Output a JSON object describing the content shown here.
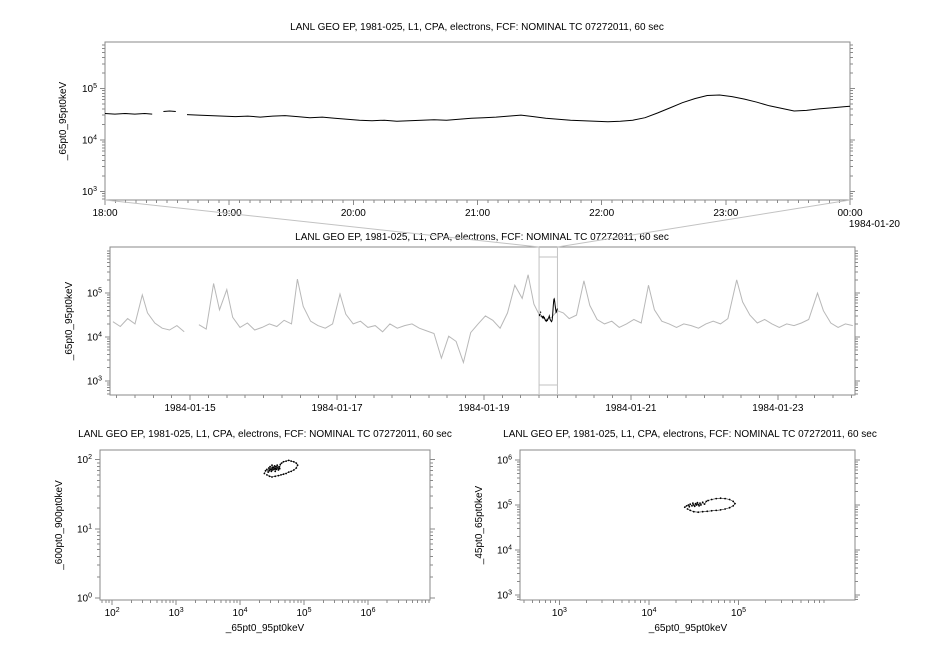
{
  "colors": {
    "series": "#000000",
    "context": "#b8b8b8",
    "axis": "#8a8a8a",
    "selection": "#c2c2c2",
    "background": "#ffffff"
  },
  "chart_data": [
    {
      "id": "zoom-timeseries",
      "type": "line",
      "color_key": "series",
      "title": "LANL GEO EP, 1981-025, L1, CPA, electrons, FCF: NOMINAL TC 07272011, 60 sec",
      "ylabel": "_65pt0_95pt0keV",
      "xlabel": "",
      "x_axis": {
        "range": [
          18,
          24
        ],
        "ticks": [
          18,
          19,
          20,
          21,
          22,
          23,
          24
        ],
        "tick_labels": [
          "18:00",
          "19:00",
          "20:00",
          "21:00",
          "22:00",
          "23:00",
          "00:00"
        ],
        "minor_step": 0.0833333,
        "date_label": "1984-01-20"
      },
      "y_axis": {
        "log": true,
        "exp_range": [
          2.83,
          5.9
        ],
        "major_exps": [
          3,
          4,
          5
        ]
      },
      "points": [
        [
          18.0,
          4.51
        ],
        [
          18.08,
          4.5
        ],
        [
          18.16,
          4.51
        ],
        [
          18.24,
          4.5
        ],
        [
          18.32,
          4.51
        ],
        [
          18.38,
          4.5
        ],
        null,
        [
          18.47,
          4.55
        ],
        [
          18.52,
          4.56
        ],
        [
          18.57,
          4.55
        ],
        null,
        [
          18.66,
          4.49
        ],
        [
          18.75,
          4.48
        ],
        [
          18.85,
          4.47
        ],
        [
          18.95,
          4.46
        ],
        [
          19.05,
          4.45
        ],
        [
          19.15,
          4.46
        ],
        [
          19.25,
          4.44
        ],
        [
          19.35,
          4.46
        ],
        [
          19.45,
          4.47
        ],
        [
          19.55,
          4.45
        ],
        [
          19.65,
          4.43
        ],
        [
          19.75,
          4.44
        ],
        [
          19.85,
          4.42
        ],
        [
          19.95,
          4.4
        ],
        [
          20.05,
          4.38
        ],
        [
          20.15,
          4.37
        ],
        [
          20.25,
          4.38
        ],
        [
          20.35,
          4.36
        ],
        [
          20.45,
          4.37
        ],
        [
          20.55,
          4.38
        ],
        [
          20.65,
          4.39
        ],
        [
          20.75,
          4.38
        ],
        [
          20.85,
          4.4
        ],
        [
          20.95,
          4.42
        ],
        [
          21.05,
          4.43
        ],
        [
          21.15,
          4.44
        ],
        [
          21.25,
          4.46
        ],
        [
          21.35,
          4.48
        ],
        [
          21.45,
          4.45
        ],
        [
          21.55,
          4.42
        ],
        [
          21.65,
          4.4
        ],
        [
          21.75,
          4.38
        ],
        [
          21.85,
          4.37
        ],
        [
          21.95,
          4.36
        ],
        [
          22.05,
          4.35
        ],
        [
          22.15,
          4.36
        ],
        [
          22.25,
          4.38
        ],
        [
          22.35,
          4.43
        ],
        [
          22.45,
          4.52
        ],
        [
          22.55,
          4.62
        ],
        [
          22.65,
          4.72
        ],
        [
          22.75,
          4.8
        ],
        [
          22.85,
          4.86
        ],
        [
          22.95,
          4.87
        ],
        [
          23.05,
          4.84
        ],
        [
          23.15,
          4.79
        ],
        [
          23.25,
          4.73
        ],
        [
          23.35,
          4.66
        ],
        [
          23.45,
          4.61
        ],
        [
          23.55,
          4.56
        ],
        [
          23.65,
          4.57
        ],
        [
          23.75,
          4.6
        ],
        [
          23.85,
          4.62
        ],
        [
          23.95,
          4.64
        ],
        [
          24.0,
          4.65
        ]
      ]
    },
    {
      "id": "context-timeseries",
      "type": "line",
      "color_key": "context",
      "title": "LANL GEO EP, 1981-025, L1, CPA, electrons, FCF: NOMINAL TC 07272011, 60 sec",
      "ylabel": "_65pt0_95pt0keV",
      "xlabel": "",
      "x_axis": {
        "range": [
          13.91,
          24.05
        ],
        "ticks": [
          15,
          17,
          19,
          21,
          23
        ],
        "tick_labels": [
          "1984-01-15",
          "1984-01-17",
          "1984-01-19",
          "1984-01-21",
          "1984-01-23"
        ],
        "minor_step": 0.25,
        "date_label": ""
      },
      "y_axis": {
        "log": true,
        "exp_range": [
          2.68,
          6.05
        ],
        "major_exps": [
          3,
          4,
          5
        ]
      },
      "selection": {
        "start_day": 19.75,
        "end_day": 20.0
      },
      "points": [
        [
          13.95,
          4.35
        ],
        [
          14.05,
          4.24
        ],
        [
          14.15,
          4.42
        ],
        [
          14.25,
          4.3
        ],
        [
          14.35,
          4.96
        ],
        [
          14.42,
          4.55
        ],
        [
          14.52,
          4.32
        ],
        [
          14.62,
          4.2
        ],
        [
          14.72,
          4.16
        ],
        [
          14.82,
          4.26
        ],
        [
          14.92,
          4.12
        ],
        null,
        [
          15.12,
          4.28
        ],
        [
          15.22,
          4.18
        ],
        [
          15.32,
          5.22
        ],
        [
          15.4,
          4.62
        ],
        [
          15.5,
          5.08
        ],
        [
          15.58,
          4.45
        ],
        [
          15.68,
          4.22
        ],
        [
          15.78,
          4.32
        ],
        [
          15.88,
          4.16
        ],
        [
          15.98,
          4.22
        ],
        [
          16.08,
          4.3
        ],
        [
          16.18,
          4.24
        ],
        [
          16.28,
          4.38
        ],
        [
          16.38,
          4.3
        ],
        [
          16.46,
          5.32
        ],
        [
          16.54,
          4.7
        ],
        [
          16.64,
          4.36
        ],
        [
          16.74,
          4.26
        ],
        [
          16.84,
          4.2
        ],
        [
          16.94,
          4.3
        ],
        [
          17.04,
          4.98
        ],
        [
          17.12,
          4.52
        ],
        [
          17.22,
          4.3
        ],
        [
          17.32,
          4.36
        ],
        [
          17.42,
          4.22
        ],
        [
          17.52,
          4.26
        ],
        [
          17.62,
          4.12
        ],
        [
          17.72,
          4.3
        ],
        [
          17.82,
          4.2
        ],
        [
          17.92,
          4.26
        ],
        [
          18.02,
          4.3
        ],
        [
          18.12,
          4.2
        ],
        [
          18.22,
          4.14
        ],
        [
          18.32,
          4.08
        ],
        [
          18.42,
          3.52
        ],
        [
          18.52,
          4.02
        ],
        [
          18.62,
          3.9
        ],
        [
          18.72,
          3.42
        ],
        [
          18.82,
          4.1
        ],
        [
          18.92,
          4.3
        ],
        [
          19.02,
          4.48
        ],
        [
          19.12,
          4.38
        ],
        [
          19.22,
          4.2
        ],
        [
          19.32,
          4.55
        ],
        [
          19.42,
          5.18
        ],
        [
          19.52,
          4.88
        ],
        [
          19.6,
          5.42
        ],
        [
          19.68,
          4.75
        ],
        [
          19.76,
          4.48
        ],
        [
          19.84,
          4.4
        ],
        [
          19.92,
          4.45
        ],
        [
          20.0,
          4.6
        ],
        [
          20.08,
          4.55
        ],
        [
          20.16,
          4.42
        ],
        [
          20.26,
          4.5
        ],
        [
          20.36,
          5.28
        ],
        [
          20.44,
          4.72
        ],
        [
          20.54,
          4.4
        ],
        [
          20.64,
          4.3
        ],
        [
          20.74,
          4.36
        ],
        [
          20.84,
          4.22
        ],
        [
          20.94,
          4.3
        ],
        [
          21.04,
          4.4
        ],
        [
          21.14,
          4.32
        ],
        [
          21.24,
          5.18
        ],
        [
          21.32,
          4.62
        ],
        [
          21.42,
          4.36
        ],
        [
          21.52,
          4.3
        ],
        [
          21.62,
          4.22
        ],
        [
          21.72,
          4.3
        ],
        [
          21.82,
          4.26
        ],
        [
          21.92,
          4.2
        ],
        [
          22.02,
          4.3
        ],
        [
          22.12,
          4.36
        ],
        [
          22.22,
          4.3
        ],
        [
          22.32,
          4.42
        ],
        [
          22.44,
          5.3
        ],
        [
          22.52,
          4.8
        ],
        [
          22.62,
          4.5
        ],
        [
          22.72,
          4.32
        ],
        [
          22.82,
          4.4
        ],
        [
          22.92,
          4.3
        ],
        [
          23.02,
          4.22
        ],
        [
          23.12,
          4.3
        ],
        [
          23.22,
          4.26
        ],
        [
          23.32,
          4.32
        ],
        [
          23.42,
          4.4
        ],
        [
          23.54,
          5.0
        ],
        [
          23.62,
          4.6
        ],
        [
          23.72,
          4.32
        ],
        [
          23.82,
          4.22
        ],
        [
          23.92,
          4.3
        ],
        [
          24.02,
          4.26
        ]
      ]
    },
    {
      "id": "scatter-600-900",
      "type": "scatter",
      "color_key": "series",
      "title": "LANL GEO EP, 1981-025, L1, CPA, electrons, FCF: NOMINAL TC 07272011, 60 sec",
      "ylabel": "_600pt0_900pt0keV",
      "xlabel": "_65pt0_95pt0keV",
      "x_axis": {
        "log": true,
        "exp_range": [
          1.81,
          6.97
        ],
        "major_exps": [
          2,
          3,
          4,
          5,
          6
        ]
      },
      "y_axis": {
        "log": true,
        "exp_range": [
          -0.03,
          2.14
        ],
        "major_exps": [
          0,
          1,
          2
        ]
      },
      "points": [
        [
          4.38,
          1.8
        ],
        [
          4.4,
          1.84
        ],
        [
          4.42,
          1.86
        ],
        [
          4.44,
          1.82
        ],
        [
          4.45,
          1.88
        ],
        [
          4.46,
          1.84
        ],
        [
          4.47,
          1.9
        ],
        [
          4.48,
          1.86
        ],
        [
          4.49,
          1.83
        ],
        [
          4.5,
          1.88
        ],
        [
          4.5,
          1.92
        ],
        [
          4.51,
          1.85
        ],
        [
          4.52,
          1.89
        ],
        [
          4.53,
          1.86
        ],
        [
          4.54,
          1.91
        ],
        [
          4.55,
          1.87
        ],
        [
          4.55,
          1.83
        ],
        [
          4.56,
          1.9
        ],
        [
          4.57,
          1.86
        ],
        [
          4.58,
          1.92
        ],
        [
          4.59,
          1.88
        ],
        [
          4.6,
          1.85
        ],
        [
          4.61,
          1.9
        ],
        [
          4.62,
          1.87
        ],
        [
          4.63,
          1.93
        ],
        [
          4.65,
          1.95
        ],
        [
          4.68,
          1.97
        ],
        [
          4.72,
          1.98
        ],
        [
          4.76,
          1.99
        ],
        [
          4.8,
          1.98
        ],
        [
          4.84,
          1.97
        ],
        [
          4.88,
          1.95
        ],
        [
          4.9,
          1.92
        ],
        [
          4.88,
          1.88
        ],
        [
          4.84,
          1.85
        ],
        [
          4.8,
          1.83
        ],
        [
          4.76,
          1.82
        ],
        [
          4.72,
          1.8
        ],
        [
          4.68,
          1.79
        ],
        [
          4.64,
          1.78
        ],
        [
          4.6,
          1.77
        ],
        [
          4.55,
          1.76
        ],
        [
          4.5,
          1.75
        ],
        [
          4.46,
          1.76
        ],
        [
          4.42,
          1.78
        ]
      ]
    },
    {
      "id": "scatter-45-65",
      "type": "scatter",
      "color_key": "series",
      "title": "LANL GEO EP, 1981-025, L1, CPA, electrons, FCF: NOMINAL TC 07272011, 60 sec",
      "ylabel": "_45pt0_65pt0keV",
      "xlabel": "_65pt0_95pt0keV",
      "x_axis": {
        "log": true,
        "exp_range": [
          2.56,
          6.3
        ],
        "major_exps": [
          3,
          4,
          5
        ]
      },
      "y_axis": {
        "log": true,
        "exp_range": [
          2.89,
          6.22
        ],
        "major_exps": [
          3,
          4,
          5,
          6
        ]
      },
      "points": [
        [
          4.4,
          4.95
        ],
        [
          4.42,
          4.98
        ],
        [
          4.44,
          5.0
        ],
        [
          4.45,
          4.96
        ],
        [
          4.46,
          5.02
        ],
        [
          4.48,
          4.98
        ],
        [
          4.49,
          5.04
        ],
        [
          4.5,
          5.0
        ],
        [
          4.51,
          4.97
        ],
        [
          4.52,
          5.03
        ],
        [
          4.53,
          5.0
        ],
        [
          4.54,
          5.05
        ],
        [
          4.55,
          5.01
        ],
        [
          4.56,
          4.98
        ],
        [
          4.57,
          5.04
        ],
        [
          4.58,
          5.0
        ],
        [
          4.6,
          5.06
        ],
        [
          4.62,
          5.02
        ],
        [
          4.64,
          5.08
        ],
        [
          4.66,
          5.1
        ],
        [
          4.7,
          5.12
        ],
        [
          4.75,
          5.14
        ],
        [
          4.8,
          5.15
        ],
        [
          4.85,
          5.14
        ],
        [
          4.9,
          5.12
        ],
        [
          4.94,
          5.08
        ],
        [
          4.96,
          5.03
        ],
        [
          4.94,
          4.98
        ],
        [
          4.9,
          4.94
        ],
        [
          4.85,
          4.91
        ],
        [
          4.8,
          4.89
        ],
        [
          4.75,
          4.88
        ],
        [
          4.7,
          4.87
        ],
        [
          4.65,
          4.86
        ],
        [
          4.6,
          4.85
        ],
        [
          4.55,
          4.84
        ],
        [
          4.5,
          4.85
        ],
        [
          4.46,
          4.88
        ],
        [
          4.43,
          4.91
        ]
      ]
    }
  ]
}
